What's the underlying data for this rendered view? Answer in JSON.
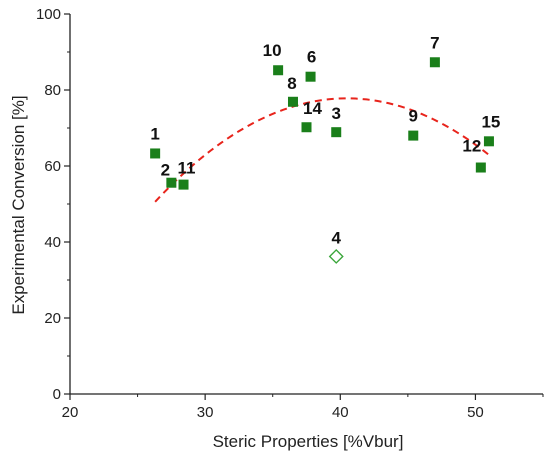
{
  "chart_data": {
    "type": "scatter",
    "title": "",
    "xlabel": "Steric Properties [%Vbur]",
    "ylabel": "Experimental Conversion [%]",
    "xlim": [
      20,
      55
    ],
    "ylim": [
      0,
      100
    ],
    "x_ticks": [
      20,
      30,
      40,
      50
    ],
    "y_ticks": [
      0,
      20,
      40,
      60,
      80,
      100
    ],
    "grid": false,
    "legend": "none",
    "colors": {
      "point_fill": "#1a7f1a",
      "outlier_stroke": "#3aa63a",
      "fit_line": "#e8241c",
      "axis": "#222222"
    },
    "series": [
      {
        "marker": "filled-square",
        "points": [
          {
            "label": "1",
            "x": 26.3,
            "y": 63.3
          },
          {
            "label": "2",
            "x": 27.5,
            "y": 55.6
          },
          {
            "label": "11",
            "x": 28.4,
            "y": 55.1
          },
          {
            "label": "10",
            "x": 35.4,
            "y": 85.2
          },
          {
            "label": "6",
            "x": 37.8,
            "y": 83.5
          },
          {
            "label": "8",
            "x": 36.5,
            "y": 76.9
          },
          {
            "label": "14",
            "x": 37.5,
            "y": 70.2
          },
          {
            "label": "3",
            "x": 39.7,
            "y": 68.9
          },
          {
            "label": "7",
            "x": 47.0,
            "y": 87.3
          },
          {
            "label": "9",
            "x": 45.4,
            "y": 68.0
          },
          {
            "label": "15",
            "x": 51.0,
            "y": 66.5
          },
          {
            "label": "12",
            "x": 50.4,
            "y": 59.6
          }
        ]
      },
      {
        "marker": "hollow-diamond",
        "points": [
          {
            "label": "4",
            "x": 39.7,
            "y": 36.2
          }
        ]
      }
    ],
    "fit": {
      "type": "quadratic",
      "style": "dashed",
      "x_range": [
        26.3,
        51.0
      ],
      "vertex": [
        40.5,
        77.8
      ],
      "a": -0.135
    }
  }
}
